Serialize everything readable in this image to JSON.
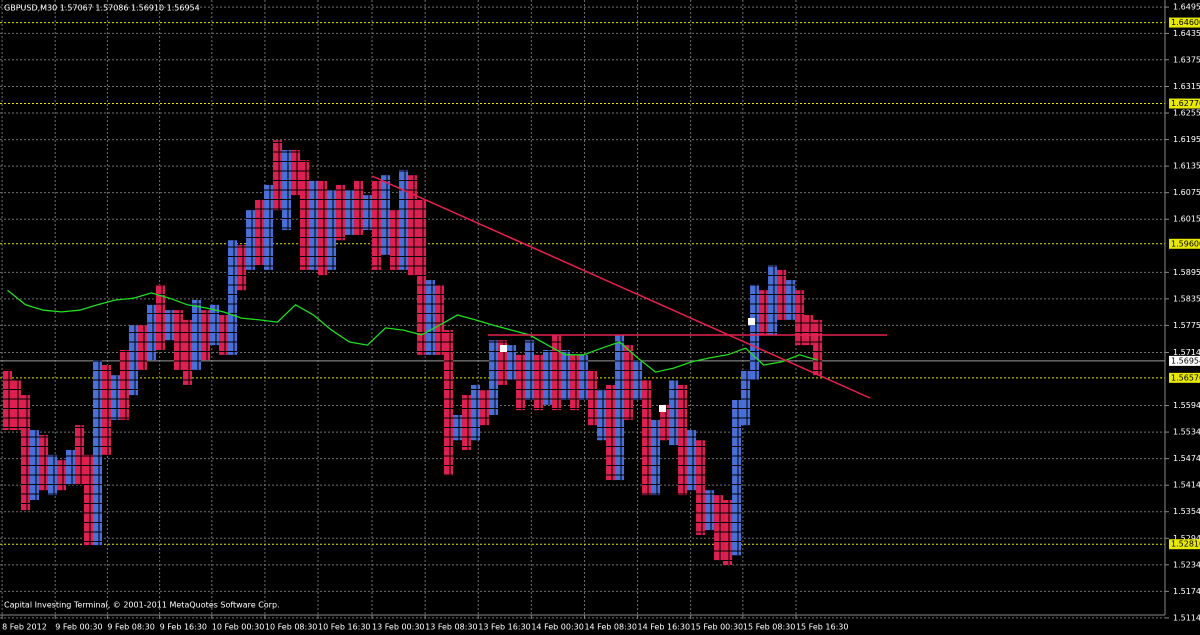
{
  "chart_data": {
    "type": "renko",
    "title": "GBPUSD,M30  1.57067 1.57086 1.56910 1.56954",
    "footer": "Capital Investing Terminal, © 2001-2011 MetaQuotes Software Corp.",
    "xlim": [
      -0.833,
      128.6
    ],
    "ylim": [
      1.5121,
      1.6511
    ],
    "xticks": [
      {
        "value": -0.6,
        "label": "8 Feb 2012"
      },
      {
        "value": 5.3,
        "label": "9 Feb 00:30"
      },
      {
        "value": 11.1,
        "label": "9 Feb 08:30"
      },
      {
        "value": 16.9,
        "label": "9 Feb 16:30"
      },
      {
        "value": 22.7,
        "label": "10 Feb 00:30"
      },
      {
        "value": 28.6,
        "label": "10 Feb 08:30"
      },
      {
        "value": 34.5,
        "label": "10 Feb 16:30"
      },
      {
        "value": 40.5,
        "label": "13 Feb 00:30"
      },
      {
        "value": 46.4,
        "label": "13 Feb 08:30"
      },
      {
        "value": 52.3,
        "label": "13 Feb 16:30"
      },
      {
        "value": 58.2,
        "label": "14 Feb 00:30"
      },
      {
        "value": 64.1,
        "label": "14 Feb 08:30"
      },
      {
        "value": 70,
        "label": "14 Feb 16:30"
      },
      {
        "value": 75.9,
        "label": "15 Feb 00:30"
      },
      {
        "value": 81.7,
        "label": "15 Feb 08:30"
      },
      {
        "value": 87.6,
        "label": "15 Feb 16:30"
      }
    ],
    "yticks": [
      {
        "value": 1.6495,
        "label": "1.64950"
      },
      1.64355,
      1.63759,
      1.63155,
      1.62555,
      1.61955,
      1.61355,
      1.60755,
      1.60155,
      1.58955,
      1.58355,
      1.57755,
      1.57144,
      1.55944,
      1.55344,
      1.54744,
      1.54144,
      1.53544,
      1.52944,
      1.52344,
      1.51744,
      1.51144
    ],
    "grid": true,
    "levels": [
      {
        "value": 1.646,
        "label": "1.64600"
      },
      {
        "value": 1.6277,
        "label": "1.62770"
      },
      {
        "value": 1.596,
        "label": "1.59600"
      },
      {
        "value": 1.5657,
        "label": "1.56570"
      },
      {
        "value": 1.5281,
        "label": "1.52810"
      }
    ],
    "level_color": "#e8e800",
    "current": 1.56954,
    "up_color": "#4a6fd8",
    "down_color": "#dc2050",
    "direction": [
      "down",
      "down",
      "down",
      "up",
      "down",
      "up",
      "down",
      "up",
      "down",
      "down",
      "up",
      "down",
      "up",
      "down",
      "up",
      "down",
      "up",
      "down",
      "up",
      "down",
      "down",
      "up",
      "down",
      "up",
      "down",
      "up",
      "down",
      "up",
      "down",
      "up",
      "down",
      "up",
      "down",
      "down",
      "up",
      "down",
      "up",
      "down",
      "up",
      "down",
      "up",
      "down",
      "up",
      "down",
      "up",
      "down",
      "down",
      "up",
      "down",
      "down",
      "up",
      "down",
      "up",
      "down",
      "up",
      "down",
      "up",
      "down",
      "up",
      "down",
      "up",
      "down",
      "up",
      "down",
      "up",
      "down",
      "up",
      "down",
      "up",
      "down",
      "up",
      "down",
      "up",
      "down",
      "up",
      "down",
      "up",
      "down",
      "up",
      "down",
      "down",
      "up",
      "up",
      "up",
      "down",
      "up",
      "down",
      "up",
      "down",
      "down",
      "down"
    ],
    "high": [
      1.5675,
      1.5652,
      1.5618,
      1.5539,
      1.5528,
      1.5483,
      1.5471,
      1.5494,
      1.555,
      1.5483,
      1.5697,
      1.5686,
      1.5663,
      1.572,
      1.5776,
      1.5776,
      1.5822,
      1.5867,
      1.581,
      1.581,
      1.5788,
      1.5833,
      1.581,
      1.5822,
      1.5799,
      1.5968,
      1.5957,
      1.6036,
      1.6059,
      1.6093,
      1.6194,
      1.6172,
      1.6172,
      1.6149,
      1.6104,
      1.6104,
      1.6081,
      1.6093,
      1.6081,
      1.6104,
      1.607,
      1.6104,
      1.6115,
      1.6036,
      1.6127,
      1.6115,
      1.6059,
      1.5878,
      1.5867,
      1.5765,
      1.5573,
      1.5618,
      1.5641,
      1.5629,
      1.5742,
      1.5742,
      1.5731,
      1.5709,
      1.5742,
      1.5709,
      1.572,
      1.5754,
      1.572,
      1.5709,
      1.5709,
      1.5675,
      1.5629,
      1.5641,
      1.5754,
      1.5731,
      1.5697,
      1.5652,
      1.5562,
      1.5596,
      1.5652,
      1.5641,
      1.5539,
      1.5516,
      1.5403,
      1.5392,
      1.5381,
      1.5607,
      1.5675,
      1.5867,
      1.5855,
      1.5912,
      1.5901,
      1.5878,
      1.5855,
      1.5799,
      1.5788
    ],
    "low": [
      1.5539,
      1.5539,
      1.5358,
      1.5381,
      1.5403,
      1.5392,
      1.5403,
      1.5415,
      1.5415,
      1.5279,
      1.5279,
      1.5483,
      1.5562,
      1.5562,
      1.5618,
      1.5675,
      1.5697,
      1.572,
      1.5742,
      1.5675,
      1.5641,
      1.5675,
      1.5697,
      1.5731,
      1.5709,
      1.5709,
      1.5855,
      1.5901,
      1.5912,
      1.5901,
      1.6036,
      1.5991,
      1.607,
      1.5901,
      1.5901,
      1.5889,
      1.5901,
      1.5968,
      1.598,
      1.598,
      1.5991,
      1.5901,
      1.5935,
      1.5901,
      1.5901,
      1.5889,
      1.5709,
      1.5709,
      1.5709,
      1.5437,
      1.5516,
      1.5494,
      1.5516,
      1.555,
      1.5573,
      1.5641,
      1.5652,
      1.5584,
      1.5607,
      1.5584,
      1.5596,
      1.5584,
      1.5607,
      1.5584,
      1.5607,
      1.555,
      1.5516,
      1.5426,
      1.5426,
      1.5562,
      1.5607,
      1.5392,
      1.5392,
      1.5516,
      1.5505,
      1.5392,
      1.5403,
      1.5302,
      1.5313,
      1.5245,
      1.5234,
      1.5256,
      1.555,
      1.5652,
      1.5754,
      1.5754,
      1.5788,
      1.5788,
      1.5731,
      1.5731,
      1.5663
    ],
    "ma": {
      "color": "#22dd22",
      "x": [
        0,
        2,
        4,
        6,
        8,
        10,
        12,
        14,
        16,
        18,
        20,
        22,
        24,
        26,
        28,
        30,
        32,
        34,
        36,
        38,
        40,
        42,
        44,
        46,
        48,
        50,
        52,
        54,
        56,
        58,
        60,
        62,
        64,
        66,
        68,
        70,
        72,
        74,
        76,
        78,
        80,
        82,
        84,
        86,
        88,
        90
      ],
      "values": [
        1.5855,
        1.5822,
        1.581,
        1.5806,
        1.581,
        1.5822,
        1.5833,
        1.5837,
        1.5849,
        1.5837,
        1.5822,
        1.5815,
        1.5806,
        1.5792,
        1.5788,
        1.5783,
        1.5822,
        1.5799,
        1.5765,
        1.5738,
        1.5731,
        1.577,
        1.5765,
        1.5754,
        1.5776,
        1.5799,
        1.5788,
        1.5776,
        1.5765,
        1.5754,
        1.5731,
        1.5709,
        1.5709,
        1.5724,
        1.5738,
        1.5702,
        1.567,
        1.5679,
        1.5693,
        1.5702,
        1.5709,
        1.5724,
        1.5686,
        1.5693,
        1.5709,
        1.5697
      ]
    }
  }
}
